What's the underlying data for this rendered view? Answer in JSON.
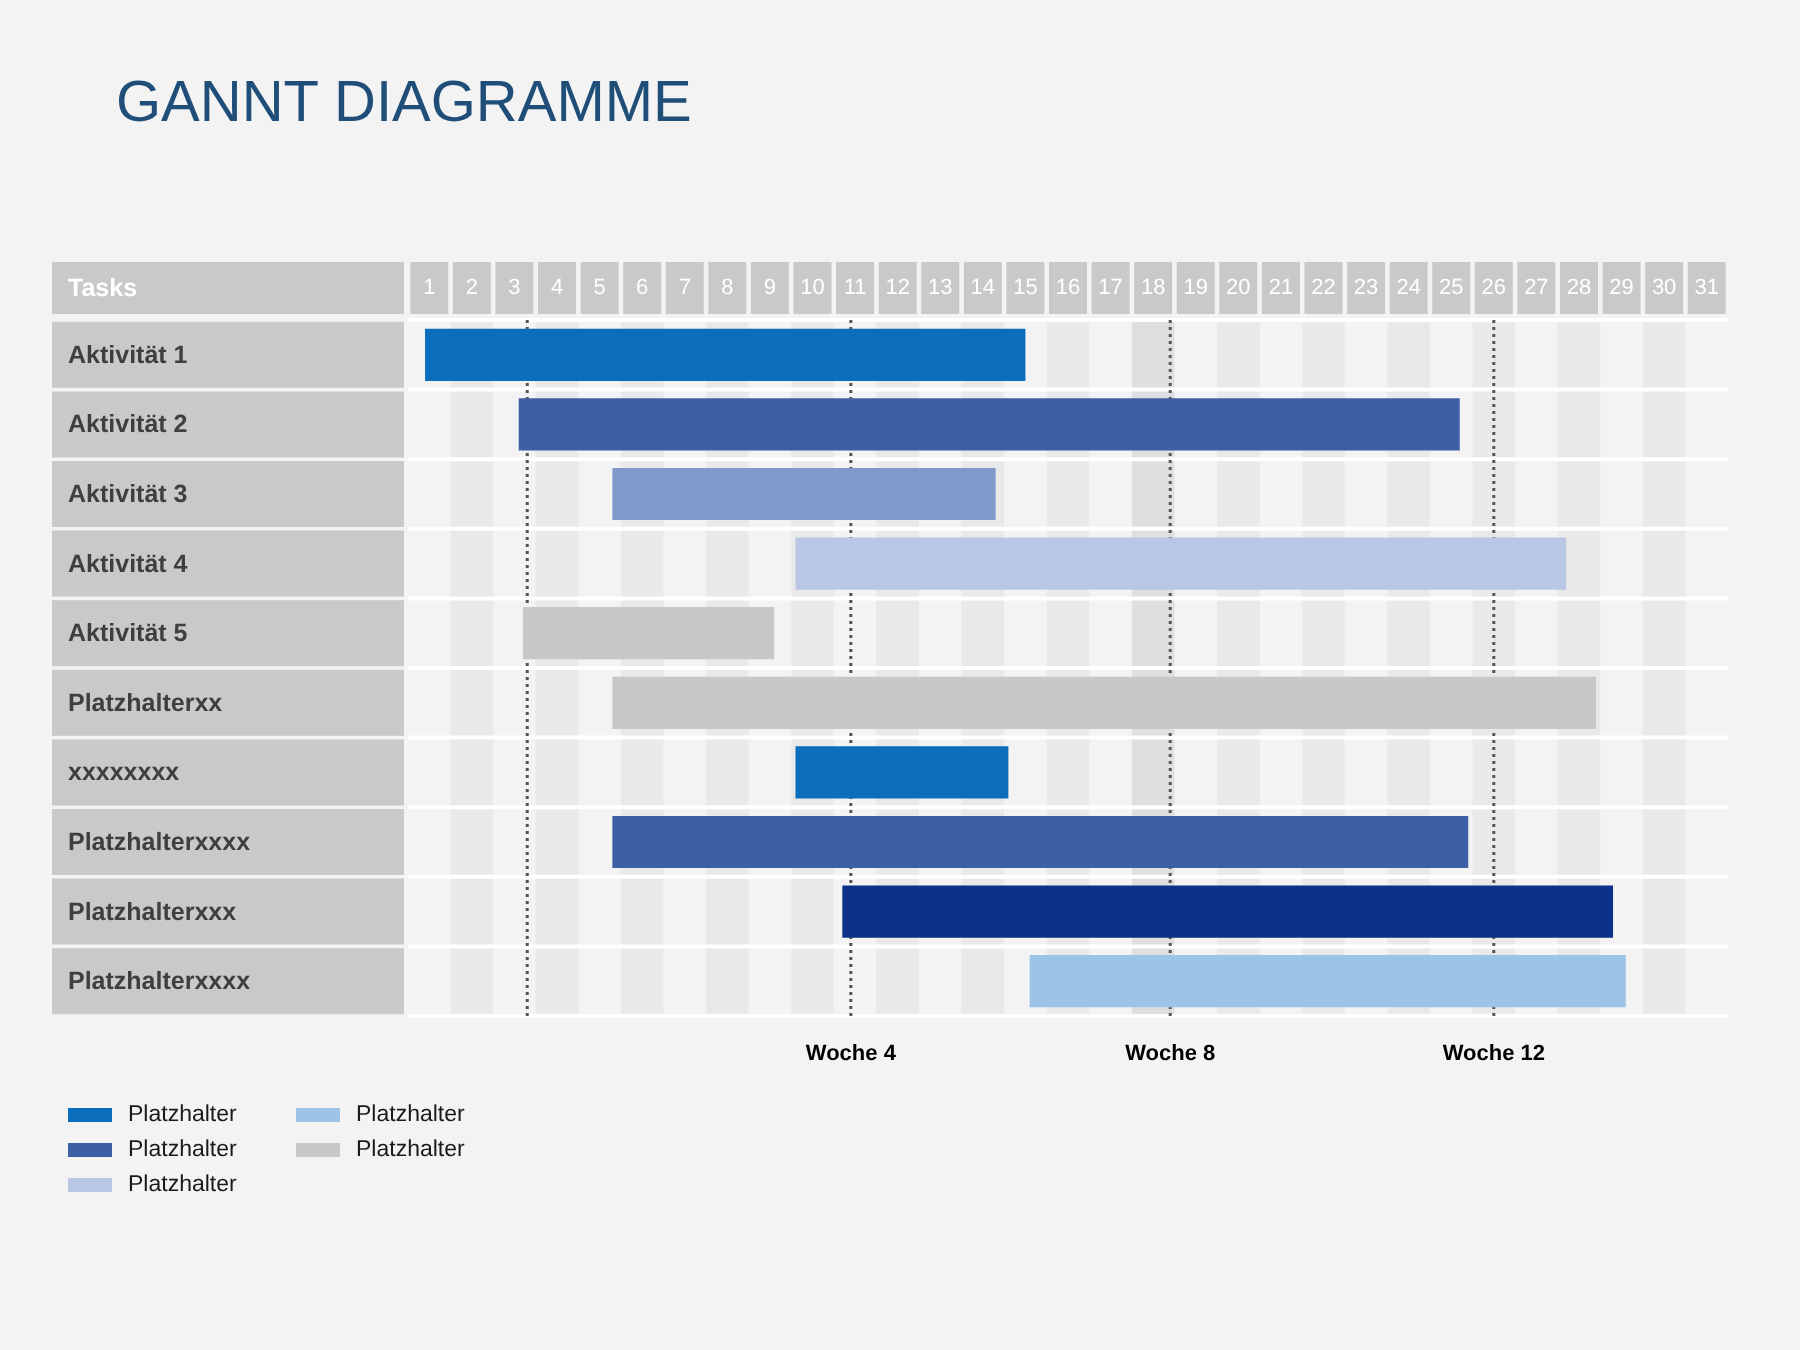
{
  "chart_data": {
    "type": "bar",
    "orientation": "horizontal",
    "title": "GANNT DIAGRAMME",
    "ylabel": "Tasks",
    "categories": [
      "Aktivität 1",
      "Aktivität 2",
      "Aktivität 3",
      "Aktivität 4",
      "Aktivität 5",
      "Platzhalterxx",
      "xxxxxxxx",
      "Platzhalterxxxx",
      "Platzhalterxxx",
      "Platzhalterxxxx"
    ],
    "series": [
      {
        "name": "Platzhalter",
        "color": "#0a6ebd",
        "base": [
          0.9,
          null,
          null,
          null,
          null,
          null,
          9.6,
          null,
          null,
          null
        ],
        "values": [
          14.1,
          null,
          null,
          null,
          null,
          null,
          5.0,
          null,
          null,
          null
        ]
      },
      {
        "name": "Platzhalter",
        "color": "#3c5fa5",
        "base": [
          null,
          3.1,
          null,
          null,
          null,
          null,
          null,
          5.3,
          null,
          null
        ],
        "values": [
          null,
          22.1,
          null,
          null,
          null,
          null,
          null,
          20.1,
          null,
          null
        ]
      },
      {
        "name": "Platzhalter",
        "color": "#b9c7e5",
        "base": [
          null,
          null,
          null,
          9.6,
          null,
          null,
          null,
          null,
          null,
          null
        ],
        "values": [
          null,
          null,
          null,
          18.1,
          null,
          null,
          null,
          null,
          null,
          null
        ]
      },
      {
        "name": "Platzhalter",
        "color": "#9dc3e6",
        "base": [
          null,
          null,
          null,
          null,
          null,
          null,
          null,
          null,
          null,
          15.1
        ],
        "values": [
          null,
          null,
          null,
          null,
          null,
          null,
          null,
          null,
          null,
          14.0
        ]
      },
      {
        "name": "Platzhalter",
        "color": "#c8c8c8",
        "base": [
          null,
          null,
          null,
          null,
          3.2,
          5.3,
          null,
          null,
          null,
          null
        ],
        "values": [
          null,
          null,
          null,
          null,
          5.9,
          23.1,
          null,
          null,
          null,
          null
        ]
      },
      {
        "color": "#7f99cb",
        "base": [
          null,
          null,
          5.3,
          null,
          null,
          null,
          null,
          null,
          null,
          null
        ],
        "values": [
          null,
          null,
          9.0,
          null,
          null,
          null,
          null,
          null,
          null,
          null
        ]
      },
      {
        "color": "#0b318a",
        "base": [
          null,
          null,
          null,
          null,
          null,
          null,
          null,
          null,
          10.7,
          null
        ],
        "values": [
          null,
          null,
          null,
          null,
          null,
          null,
          null,
          null,
          18.1,
          null
        ]
      }
    ],
    "xlim": [
      0.5,
      31.5
    ],
    "xticks": [
      1,
      2,
      3,
      4,
      5,
      6,
      7,
      8,
      9,
      10,
      11,
      12,
      13,
      14,
      15,
      16,
      17,
      18,
      19,
      20,
      21,
      22,
      23,
      24,
      25,
      26,
      27,
      28,
      29,
      30,
      31
    ],
    "ref_lines": [
      {
        "axis": "x",
        "value": 3.3,
        "color": "#555555",
        "line_style": "dotted"
      },
      {
        "axis": "x",
        "value": 10.9,
        "label": "Woche 4",
        "color": "#555555",
        "line_style": "dotted"
      },
      {
        "axis": "x",
        "value": 18.4,
        "label": "Woche 8",
        "color": "#555555",
        "line_style": "dotted"
      },
      {
        "axis": "x",
        "value": 26.0,
        "label": "Woche 12",
        "color": "#555555",
        "line_style": "dotted"
      }
    ],
    "bands": [
      {
        "axis": "x",
        "from": 1.5,
        "to": 2.5,
        "color": "#e9e9e9"
      },
      {
        "axis": "x",
        "from": 3.5,
        "to": 4.5,
        "color": "#e9e9e9"
      },
      {
        "axis": "x",
        "from": 5.5,
        "to": 6.5,
        "color": "#e9e9e9"
      },
      {
        "axis": "x",
        "from": 7.5,
        "to": 8.5,
        "color": "#e9e9e9"
      },
      {
        "axis": "x",
        "from": 9.5,
        "to": 10.5,
        "color": "#e9e9e9"
      },
      {
        "axis": "x",
        "from": 11.5,
        "to": 12.5,
        "color": "#e9e9e9"
      },
      {
        "axis": "x",
        "from": 13.5,
        "to": 14.5,
        "color": "#e9e9e9"
      },
      {
        "axis": "x",
        "from": 15.5,
        "to": 16.5,
        "color": "#e9e9e9"
      },
      {
        "axis": "x",
        "from": 17.5,
        "to": 18.5,
        "color": "#dfdfdf"
      },
      {
        "axis": "x",
        "from": 19.5,
        "to": 20.5,
        "color": "#e9e9e9"
      },
      {
        "axis": "x",
        "from": 21.5,
        "to": 22.5,
        "color": "#e9e9e9"
      },
      {
        "axis": "x",
        "from": 23.5,
        "to": 24.5,
        "color": "#e9e9e9"
      },
      {
        "axis": "x",
        "from": 25.5,
        "to": 26.5,
        "color": "#e9e9e9"
      },
      {
        "axis": "x",
        "from": 27.5,
        "to": 28.5,
        "color": "#e9e9e9"
      },
      {
        "axis": "x",
        "from": 29.5,
        "to": 30.5,
        "color": "#e9e9e9"
      }
    ],
    "grid": "y",
    "legend": "bottom left"
  }
}
